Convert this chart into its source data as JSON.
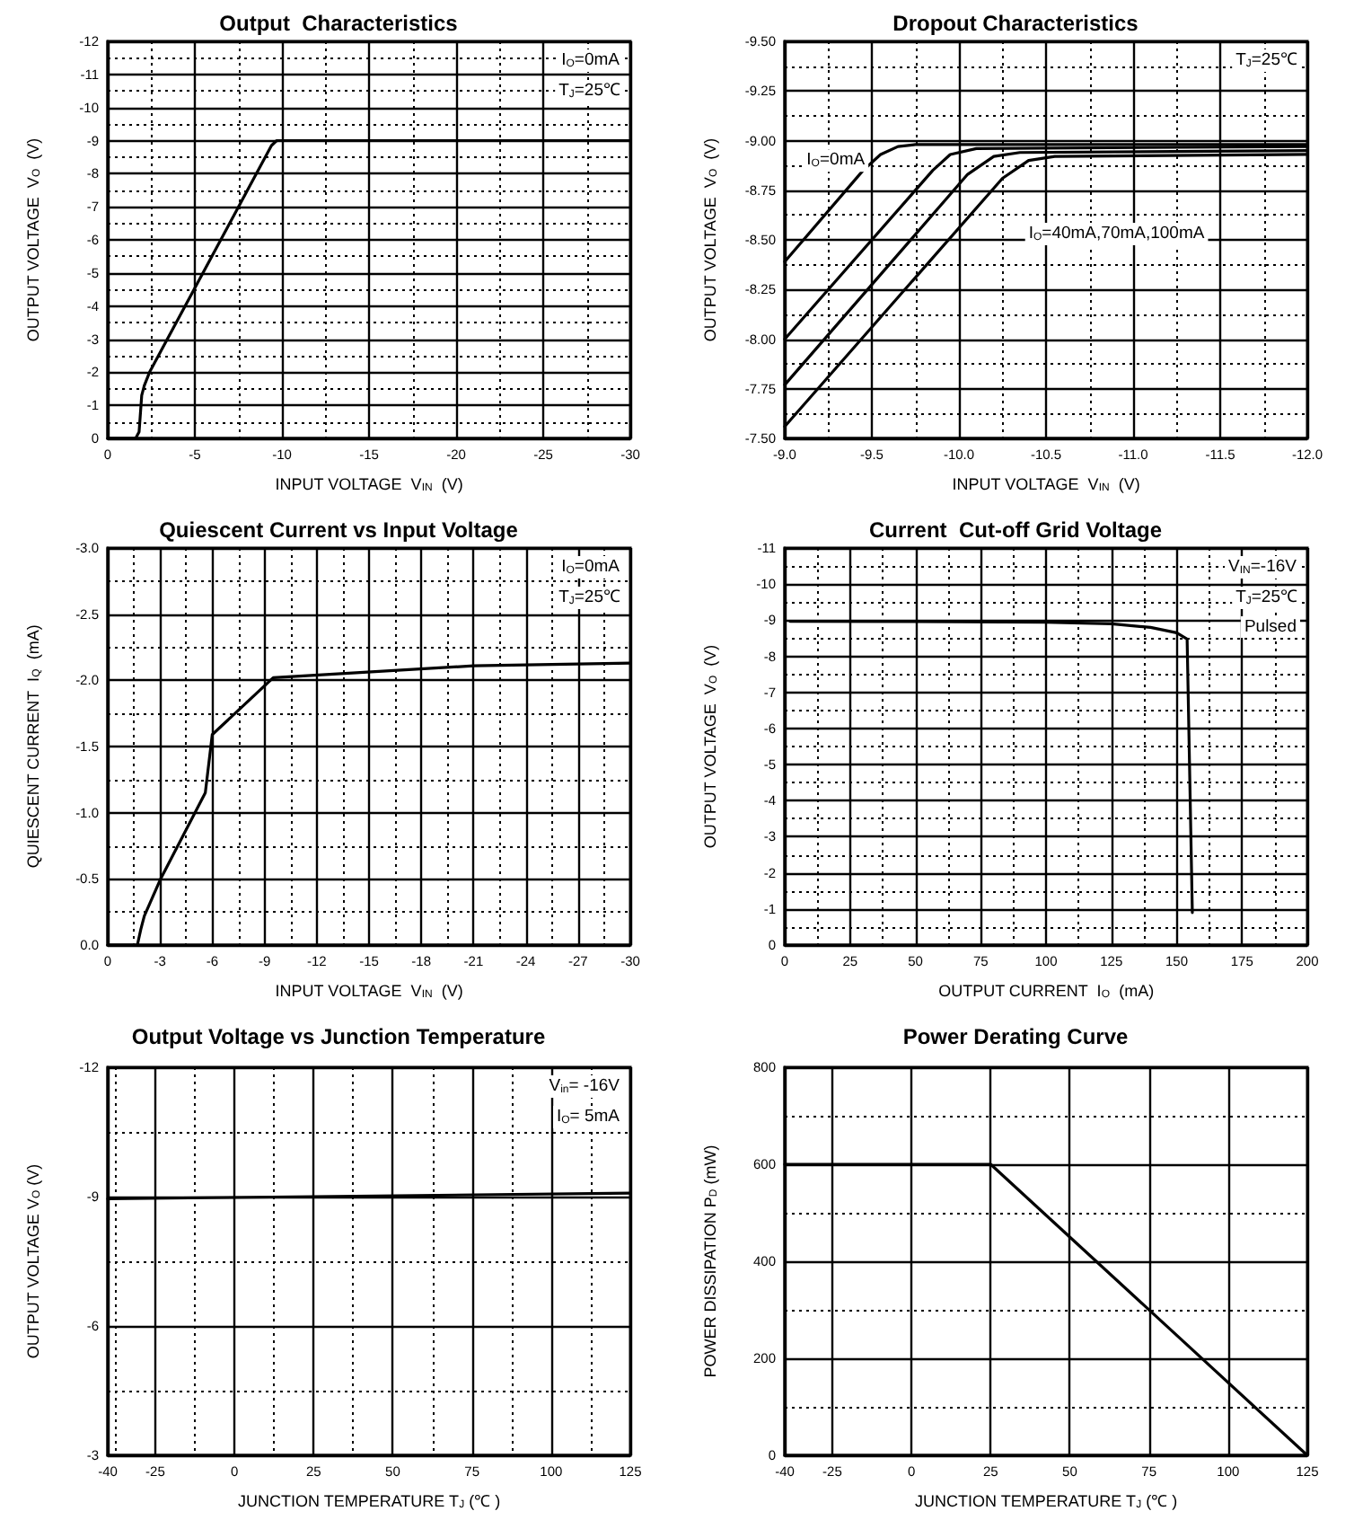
{
  "chart_data": [
    {
      "type": "line",
      "title": "Output  Characteristics",
      "xlabel": "INPUT VOLTAGE  V$_{IN}$  (V)",
      "ylabel": "OUTPUT VOLTAGE  V$_{O}$  (V)",
      "annotations": [
        "I$_{O}$=0mA",
        "T$_{J}$=25℃"
      ],
      "series": [
        {
          "color": "#000000",
          "x": [
            0,
            -1.6,
            -1.8,
            -1.95,
            -2.1,
            -2.4,
            -9.4,
            -9.7,
            -30
          ],
          "values": [
            0,
            0,
            -0.2,
            -1.3,
            -1.6,
            -2.0,
            -8.85,
            -9,
            -9
          ]
        }
      ],
      "xlim": [
        0,
        -30
      ],
      "ylim": [
        0,
        -12
      ],
      "xticks": [
        0,
        {
          "value": -2.5,
          "label": null
        },
        -5,
        {
          "value": -7.5,
          "label": null
        },
        -10,
        {
          "value": -12.5,
          "label": null
        },
        -15,
        {
          "value": -17.5,
          "label": null
        },
        -20,
        {
          "value": -22.5,
          "label": null
        },
        -25,
        {
          "value": -27.5,
          "label": null
        },
        -30
      ],
      "yticks": [
        0,
        {
          "value": -0.5,
          "label": null
        },
        -1,
        {
          "value": -1.5,
          "label": null
        },
        -2,
        {
          "value": -2.5,
          "label": null
        },
        -3,
        {
          "value": -3.5,
          "label": null
        },
        -4,
        {
          "value": -4.5,
          "label": null
        },
        -5,
        {
          "value": -5.5,
          "label": null
        },
        -6,
        {
          "value": -6.5,
          "label": null
        },
        -7,
        {
          "value": -7.5,
          "label": null
        },
        -8,
        {
          "value": -8.5,
          "label": null
        },
        -9,
        {
          "value": -9.5,
          "label": null
        },
        -10,
        {
          "value": -10.5,
          "label": null
        },
        -11,
        {
          "value": -11.5,
          "label": null
        },
        -12
      ],
      "grid": true,
      "marker": "none"
    },
    {
      "type": "line",
      "title": "Dropout Characteristics",
      "xlabel": "INPUT VOLTAGE  V$_{IN}$  (V)",
      "ylabel": "OUTPUT VOLTAGE  V$_{O}$  (V)",
      "annotations": [
        "T$_{J}$=25℃",
        "I$_{O}$=0mA",
        "I$_{O}$=40mA,70mA,100mA"
      ],
      "series": [
        {
          "color": "#000000",
          "x": [
            -9,
            -9.45,
            -9.55,
            -9.65,
            -9.75,
            -12
          ],
          "values": [
            -8.39,
            -8.85,
            -8.93,
            -8.97,
            -8.98,
            -8.98
          ]
        },
        {
          "color": "#000000",
          "x": [
            -9,
            -9.85,
            -9.95,
            -10.1,
            -12
          ],
          "values": [
            -8.0,
            -8.85,
            -8.93,
            -8.96,
            -8.97
          ]
        },
        {
          "color": "#000000",
          "x": [
            -9,
            -10.05,
            -10.2,
            -10.35,
            -12
          ],
          "values": [
            -7.77,
            -8.83,
            -8.92,
            -8.94,
            -8.95
          ]
        },
        {
          "color": "#000000",
          "x": [
            -9,
            -10.25,
            -10.4,
            -10.55,
            -12
          ],
          "values": [
            -7.56,
            -8.81,
            -8.9,
            -8.92,
            -8.93
          ]
        }
      ],
      "xlim": [
        -9,
        -12
      ],
      "ylim": [
        -7.5,
        -9.5
      ],
      "xticks": [
        {
          "value": -9,
          "label": "-9.0"
        },
        {
          "value": -9.25,
          "label": null
        },
        {
          "value": -9.5,
          "label": "-9.5"
        },
        {
          "value": -9.75,
          "label": null
        },
        {
          "value": -10,
          "label": "-10.0"
        },
        {
          "value": -10.25,
          "label": null
        },
        {
          "value": -10.5,
          "label": "-10.5"
        },
        {
          "value": -10.75,
          "label": null
        },
        {
          "value": -11,
          "label": "-11.0"
        },
        {
          "value": -11.25,
          "label": null
        },
        {
          "value": -11.5,
          "label": "-11.5"
        },
        {
          "value": -11.75,
          "label": null
        },
        {
          "value": -12,
          "label": "-12.0"
        }
      ],
      "yticks": [
        {
          "value": -7.5,
          "label": "-7.50"
        },
        {
          "value": -7.625,
          "label": null
        },
        {
          "value": -7.75,
          "label": "-7.75"
        },
        {
          "value": -7.875,
          "label": null
        },
        {
          "value": -8,
          "label": "-8.00"
        },
        {
          "value": -8.125,
          "label": null
        },
        {
          "value": -8.25,
          "label": "-8.25"
        },
        {
          "value": -8.375,
          "label": null
        },
        {
          "value": -8.5,
          "label": "-8.50"
        },
        {
          "value": -8.625,
          "label": null
        },
        {
          "value": -8.75,
          "label": "-8.75"
        },
        {
          "value": -8.875,
          "label": null
        },
        {
          "value": -9,
          "label": "-9.00"
        },
        {
          "value": -9.125,
          "label": null
        },
        {
          "value": -9.25,
          "label": "-9.25"
        },
        {
          "value": -9.375,
          "label": null
        },
        {
          "value": -9.5,
          "label": "-9.50"
        }
      ],
      "grid": true,
      "marker": "none"
    },
    {
      "type": "line",
      "title": "Quiescent Current vs Input Voltage",
      "xlabel": "INPUT VOLTAGE  V$_{IN}$  (V)",
      "ylabel": "QUIESCENT CURRENT  I$_{Q}$  (mA)",
      "annotations": [
        "I$_{O}$=0mA",
        "T$_{J}$=25℃"
      ],
      "series": [
        {
          "color": "#000000",
          "x": [
            0,
            -1.7,
            -1.9,
            -2.1,
            -3,
            -5.6,
            -6.0,
            -9.5,
            -21,
            -30
          ],
          "values": [
            0,
            0,
            -0.12,
            -0.22,
            -0.49,
            -1.15,
            -1.59,
            -2.02,
            -2.11,
            -2.13
          ]
        }
      ],
      "xlim": [
        0,
        -30
      ],
      "ylim": [
        0,
        -3
      ],
      "xticks": [
        0,
        {
          "value": -1.5,
          "label": null
        },
        -3,
        {
          "value": -4.5,
          "label": null
        },
        -6,
        {
          "value": -7.5,
          "label": null
        },
        -9,
        {
          "value": -10.5,
          "label": null
        },
        -12,
        {
          "value": -13.5,
          "label": null
        },
        -15,
        {
          "value": -16.5,
          "label": null
        },
        -18,
        {
          "value": -19.5,
          "label": null
        },
        -21,
        {
          "value": -22.5,
          "label": null
        },
        -24,
        {
          "value": -25.5,
          "label": null
        },
        -27,
        {
          "value": -28.5,
          "label": null
        },
        -30
      ],
      "yticks": [
        {
          "value": 0,
          "label": "0.0"
        },
        {
          "value": -0.25,
          "label": null
        },
        {
          "value": -0.5,
          "label": "-0.5"
        },
        {
          "value": -0.75,
          "label": null
        },
        {
          "value": -1,
          "label": "-1.0"
        },
        {
          "value": -1.25,
          "label": null
        },
        {
          "value": -1.5,
          "label": "-1.5"
        },
        {
          "value": -1.75,
          "label": null
        },
        {
          "value": -2,
          "label": "-2.0"
        },
        {
          "value": -2.25,
          "label": null
        },
        {
          "value": -2.5,
          "label": "-2.5"
        },
        {
          "value": -2.75,
          "label": null
        },
        {
          "value": -3,
          "label": "-3.0"
        }
      ],
      "grid": true,
      "marker": "none"
    },
    {
      "type": "line",
      "title": "Current  Cut-off Grid Voltage",
      "xlabel": "OUTPUT CURRENT  I$_{O}$  (mA)",
      "ylabel": "OUTPUT VOLTAGE  V$_{O}$  (V)",
      "annotations": [
        "V$_{IN}$=-16V",
        "T$_{J}$=25℃",
        "Pulsed"
      ],
      "series": [
        {
          "color": "#000000",
          "x": [
            2,
            50,
            100,
            125,
            140,
            150,
            154,
            156
          ],
          "values": [
            -8.97,
            -8.96,
            -8.94,
            -8.9,
            -8.8,
            -8.65,
            -8.48,
            -0.9
          ]
        }
      ],
      "xlim": [
        0,
        200
      ],
      "ylim": [
        0,
        -11
      ],
      "xticks": [
        0,
        {
          "value": 12.5,
          "label": null
        },
        25,
        {
          "value": 37.5,
          "label": null
        },
        50,
        {
          "value": 62.5,
          "label": null
        },
        75,
        {
          "value": 87.5,
          "label": null
        },
        100,
        {
          "value": 112.5,
          "label": null
        },
        125,
        {
          "value": 137.5,
          "label": null
        },
        150,
        {
          "value": 162.5,
          "label": null
        },
        175,
        {
          "value": 187.5,
          "label": null
        },
        200
      ],
      "yticks": [
        0,
        {
          "value": -0.5,
          "label": null
        },
        -1,
        {
          "value": -1.5,
          "label": null
        },
        -2,
        {
          "value": -2.5,
          "label": null
        },
        -3,
        {
          "value": -3.5,
          "label": null
        },
        -4,
        {
          "value": -4.5,
          "label": null
        },
        -5,
        {
          "value": -5.5,
          "label": null
        },
        -6,
        {
          "value": -6.5,
          "label": null
        },
        -7,
        {
          "value": -7.5,
          "label": null
        },
        -8,
        {
          "value": -8.5,
          "label": null
        },
        -9,
        {
          "value": -9.5,
          "label": null
        },
        -10,
        {
          "value": -10.5,
          "label": null
        },
        -11
      ],
      "grid": true,
      "marker": "none"
    },
    {
      "type": "line",
      "title": "Output Voltage vs Junction Temperature",
      "xlabel": "JUNCTION TEMPERATURE T$_{J}$ (℃ )",
      "ylabel": "OUTPUT VOLTAGE V$_{O}$ (V)",
      "annotations": [
        "V$_{in}$= -16V",
        "I$_{O}$= 5mA"
      ],
      "series": [
        {
          "color": "#000000",
          "x": [
            -40,
            25,
            125
          ],
          "values": [
            -8.95,
            -9.0,
            -9.08
          ]
        }
      ],
      "xlim": [
        -40,
        125
      ],
      "ylim": [
        -3,
        -12
      ],
      "xticks": [
        -40,
        {
          "value": -37.5,
          "label": null
        },
        -25,
        {
          "value": -12.5,
          "label": null
        },
        0,
        {
          "value": 12.5,
          "label": null
        },
        25,
        {
          "value": 37.5,
          "label": null
        },
        50,
        {
          "value": 62.5,
          "label": null
        },
        75,
        {
          "value": 87.5,
          "label": null
        },
        100,
        {
          "value": 112.5,
          "label": null
        },
        125
      ],
      "yticks": [
        -3,
        {
          "value": -4.5,
          "label": null
        },
        -6,
        {
          "value": -7.5,
          "label": null
        },
        -9,
        {
          "value": -10.5,
          "label": null
        },
        -12
      ],
      "grid": true,
      "marker": "none"
    },
    {
      "type": "line",
      "title": "Power Derating Curve",
      "xlabel": "JUNCTION TEMPERATURE T$_{J}$ (℃ )",
      "ylabel": "POWER DISSIPATION P$_{D}$ (mW)",
      "series": [
        {
          "color": "#000000",
          "x": [
            -40,
            25,
            125
          ],
          "values": [
            600,
            600,
            0
          ]
        }
      ],
      "xlim": [
        -40,
        125
      ],
      "ylim": [
        0,
        800
      ],
      "xticks": [
        -40,
        -25,
        0,
        25,
        50,
        75,
        100,
        125
      ],
      "yticks": [
        0,
        {
          "value": 100,
          "label": null
        },
        200,
        {
          "value": 300,
          "label": null
        },
        400,
        {
          "value": 500,
          "label": null
        },
        600,
        {
          "value": 700,
          "label": null
        },
        800
      ],
      "grid": true,
      "marker": "none"
    }
  ]
}
